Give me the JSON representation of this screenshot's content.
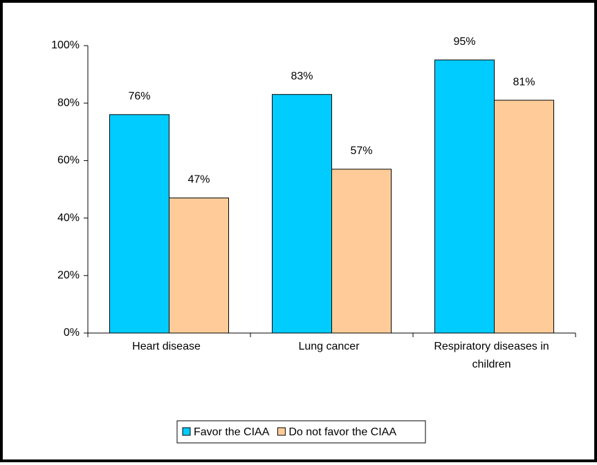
{
  "chart_data": {
    "type": "bar",
    "categories": [
      "Heart disease",
      "Lung cancer",
      "Respiratory diseases in children"
    ],
    "series": [
      {
        "name": "Favor the CIAA",
        "color": "#00ccff",
        "values": [
          76,
          83,
          95
        ],
        "value_labels": [
          "76%",
          "83%",
          "95%"
        ]
      },
      {
        "name": "Do not favor the CIAA",
        "color": "#ffcc99",
        "values": [
          47,
          57,
          81
        ],
        "value_labels": [
          "47%",
          "57%",
          "81%"
        ]
      }
    ],
    "ylim": [
      0,
      100
    ],
    "yticks": [
      {
        "value": 0,
        "label": "0%"
      },
      {
        "value": 20,
        "label": "20%"
      },
      {
        "value": 40,
        "label": "40%"
      },
      {
        "value": 60,
        "label": "60%"
      },
      {
        "value": 80,
        "label": "80%"
      },
      {
        "value": 100,
        "label": "100%"
      }
    ],
    "grid": false,
    "legend": "bottom"
  }
}
